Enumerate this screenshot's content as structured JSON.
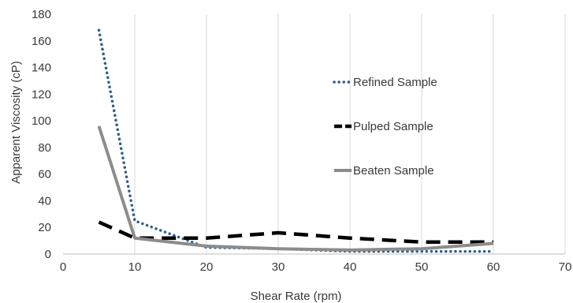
{
  "chart_data": {
    "type": "line",
    "title": "",
    "xlabel": "Shear Rate (rpm)",
    "ylabel": "Apparent Viscosity (cP)",
    "xlim": [
      0,
      70
    ],
    "ylim": [
      0,
      180
    ],
    "xticks": [
      0,
      10,
      20,
      30,
      40,
      50,
      60,
      70
    ],
    "yticks": [
      0,
      20,
      40,
      60,
      80,
      100,
      120,
      140,
      160,
      180
    ],
    "grid": "vertical",
    "legend_position": "inside-right",
    "x": [
      5,
      10,
      20,
      30,
      40,
      50,
      60
    ],
    "series": [
      {
        "name": "Refined Sample",
        "values": [
          168,
          25,
          5,
          4,
          2,
          2,
          2
        ],
        "color": "#2e5f8c",
        "style": "dotted"
      },
      {
        "name": "Pulped Sample",
        "values": [
          24,
          12,
          12,
          16,
          12,
          9,
          9
        ],
        "color": "#000000",
        "style": "dashed"
      },
      {
        "name": "Beaten Sample",
        "values": [
          96,
          12,
          6,
          4,
          3,
          4,
          8
        ],
        "color": "#8c8c8c",
        "style": "solid"
      }
    ]
  }
}
